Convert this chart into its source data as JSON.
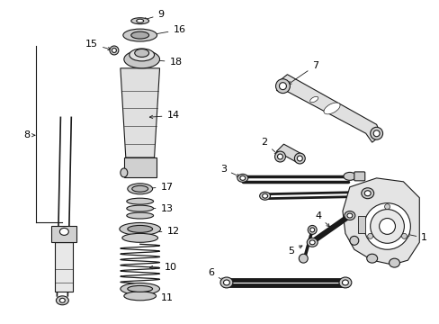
{
  "background_color": "#ffffff",
  "line_color": "#1a1a1a",
  "label_color": "#000000",
  "fig_width": 4.89,
  "fig_height": 3.6,
  "dpi": 100,
  "xlim": [
    0,
    489
  ],
  "ylim": [
    0,
    360
  ]
}
